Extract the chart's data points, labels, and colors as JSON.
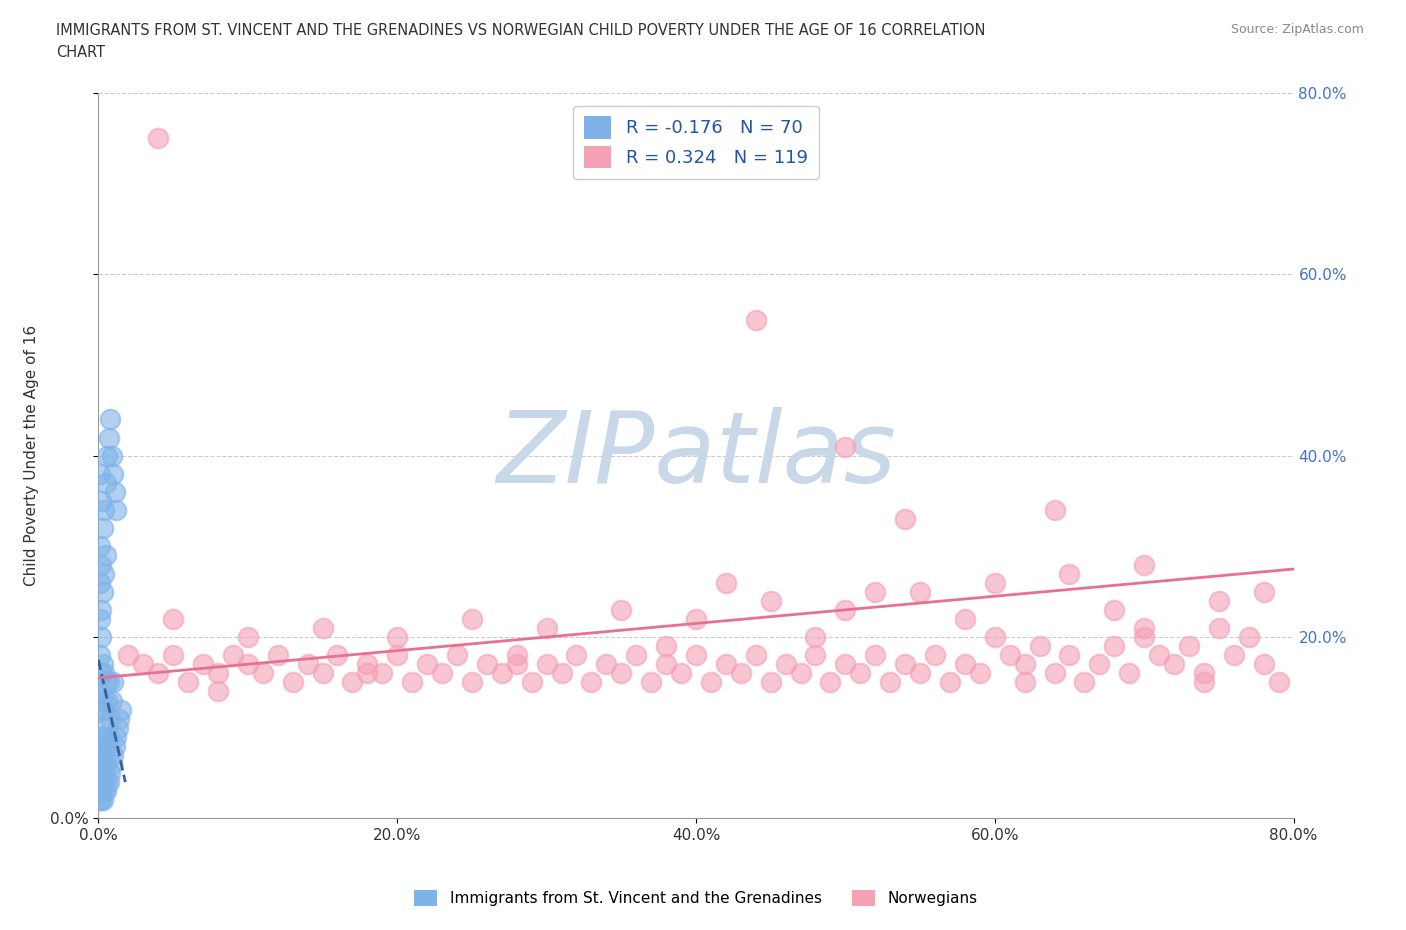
{
  "title_line1": "IMMIGRANTS FROM ST. VINCENT AND THE GRENADINES VS NORWEGIAN CHILD POVERTY UNDER THE AGE OF 16 CORRELATION",
  "title_line2": "CHART",
  "source_text": "Source: ZipAtlas.com",
  "ylabel": "Child Poverty Under the Age of 16",
  "xlim": [
    0,
    0.8
  ],
  "ylim": [
    0,
    0.8
  ],
  "grid_color": "#cccccc",
  "background_color": "#ffffff",
  "watermark": "ZIPatlas",
  "watermark_color": "#c8d8e8",
  "blue_color": "#7fb3e8",
  "pink_color": "#f4a0b5",
  "blue_R": -0.176,
  "blue_N": 70,
  "pink_R": 0.324,
  "pink_N": 119,
  "legend_label_blue": "Immigrants from St. Vincent and the Grenadines",
  "legend_label_pink": "Norwegians",
  "blue_scatter_x": [
    0.001,
    0.001,
    0.001,
    0.001,
    0.001,
    0.001,
    0.001,
    0.001,
    0.001,
    0.002,
    0.002,
    0.002,
    0.002,
    0.002,
    0.002,
    0.002,
    0.002,
    0.003,
    0.003,
    0.003,
    0.003,
    0.003,
    0.003,
    0.004,
    0.004,
    0.004,
    0.004,
    0.004,
    0.005,
    0.005,
    0.005,
    0.005,
    0.006,
    0.006,
    0.006,
    0.007,
    0.007,
    0.007,
    0.008,
    0.008,
    0.009,
    0.009,
    0.01,
    0.01,
    0.011,
    0.012,
    0.013,
    0.014,
    0.015,
    0.001,
    0.001,
    0.001,
    0.001,
    0.002,
    0.002,
    0.002,
    0.003,
    0.003,
    0.004,
    0.004,
    0.005,
    0.005,
    0.006,
    0.007,
    0.008,
    0.009,
    0.01,
    0.011,
    0.012
  ],
  "blue_scatter_y": [
    0.02,
    0.03,
    0.04,
    0.05,
    0.06,
    0.07,
    0.08,
    0.14,
    0.18,
    0.02,
    0.03,
    0.05,
    0.07,
    0.09,
    0.12,
    0.16,
    0.2,
    0.02,
    0.04,
    0.06,
    0.09,
    0.13,
    0.17,
    0.03,
    0.05,
    0.08,
    0.12,
    0.16,
    0.03,
    0.06,
    0.1,
    0.15,
    0.04,
    0.08,
    0.13,
    0.04,
    0.09,
    0.15,
    0.05,
    0.11,
    0.06,
    0.13,
    0.07,
    0.15,
    0.08,
    0.09,
    0.1,
    0.11,
    0.12,
    0.22,
    0.26,
    0.3,
    0.38,
    0.23,
    0.28,
    0.35,
    0.25,
    0.32,
    0.27,
    0.34,
    0.29,
    0.37,
    0.4,
    0.42,
    0.44,
    0.4,
    0.38,
    0.36,
    0.34
  ],
  "pink_scatter_x": [
    0.02,
    0.03,
    0.04,
    0.05,
    0.06,
    0.07,
    0.08,
    0.09,
    0.1,
    0.11,
    0.12,
    0.13,
    0.14,
    0.15,
    0.16,
    0.17,
    0.18,
    0.19,
    0.2,
    0.21,
    0.22,
    0.23,
    0.24,
    0.25,
    0.26,
    0.27,
    0.28,
    0.29,
    0.3,
    0.31,
    0.32,
    0.33,
    0.34,
    0.35,
    0.36,
    0.37,
    0.38,
    0.39,
    0.4,
    0.41,
    0.42,
    0.43,
    0.44,
    0.45,
    0.46,
    0.47,
    0.48,
    0.49,
    0.5,
    0.51,
    0.52,
    0.53,
    0.54,
    0.55,
    0.56,
    0.57,
    0.58,
    0.59,
    0.6,
    0.61,
    0.62,
    0.63,
    0.64,
    0.65,
    0.66,
    0.67,
    0.68,
    0.69,
    0.7,
    0.71,
    0.72,
    0.73,
    0.74,
    0.75,
    0.76,
    0.77,
    0.78,
    0.79,
    0.05,
    0.1,
    0.15,
    0.2,
    0.25,
    0.3,
    0.35,
    0.4,
    0.45,
    0.5,
    0.55,
    0.6,
    0.65,
    0.7,
    0.75,
    0.08,
    0.18,
    0.28,
    0.38,
    0.48,
    0.58,
    0.68,
    0.78,
    0.04,
    0.44,
    0.54,
    0.64,
    0.74,
    0.5,
    0.7,
    0.42,
    0.52,
    0.62
  ],
  "pink_scatter_y": [
    0.18,
    0.17,
    0.16,
    0.18,
    0.15,
    0.17,
    0.16,
    0.18,
    0.17,
    0.16,
    0.18,
    0.15,
    0.17,
    0.16,
    0.18,
    0.15,
    0.17,
    0.16,
    0.18,
    0.15,
    0.17,
    0.16,
    0.18,
    0.15,
    0.17,
    0.16,
    0.18,
    0.15,
    0.17,
    0.16,
    0.18,
    0.15,
    0.17,
    0.16,
    0.18,
    0.15,
    0.17,
    0.16,
    0.18,
    0.15,
    0.17,
    0.16,
    0.18,
    0.15,
    0.17,
    0.16,
    0.18,
    0.15,
    0.17,
    0.16,
    0.18,
    0.15,
    0.17,
    0.16,
    0.18,
    0.15,
    0.17,
    0.16,
    0.2,
    0.18,
    0.17,
    0.19,
    0.16,
    0.18,
    0.15,
    0.17,
    0.19,
    0.16,
    0.21,
    0.18,
    0.17,
    0.19,
    0.16,
    0.21,
    0.18,
    0.2,
    0.17,
    0.15,
    0.22,
    0.2,
    0.21,
    0.2,
    0.22,
    0.21,
    0.23,
    0.22,
    0.24,
    0.23,
    0.25,
    0.26,
    0.27,
    0.28,
    0.24,
    0.14,
    0.16,
    0.17,
    0.19,
    0.2,
    0.22,
    0.23,
    0.25,
    0.75,
    0.55,
    0.33,
    0.34,
    0.15,
    0.41,
    0.2,
    0.26,
    0.25,
    0.15
  ]
}
